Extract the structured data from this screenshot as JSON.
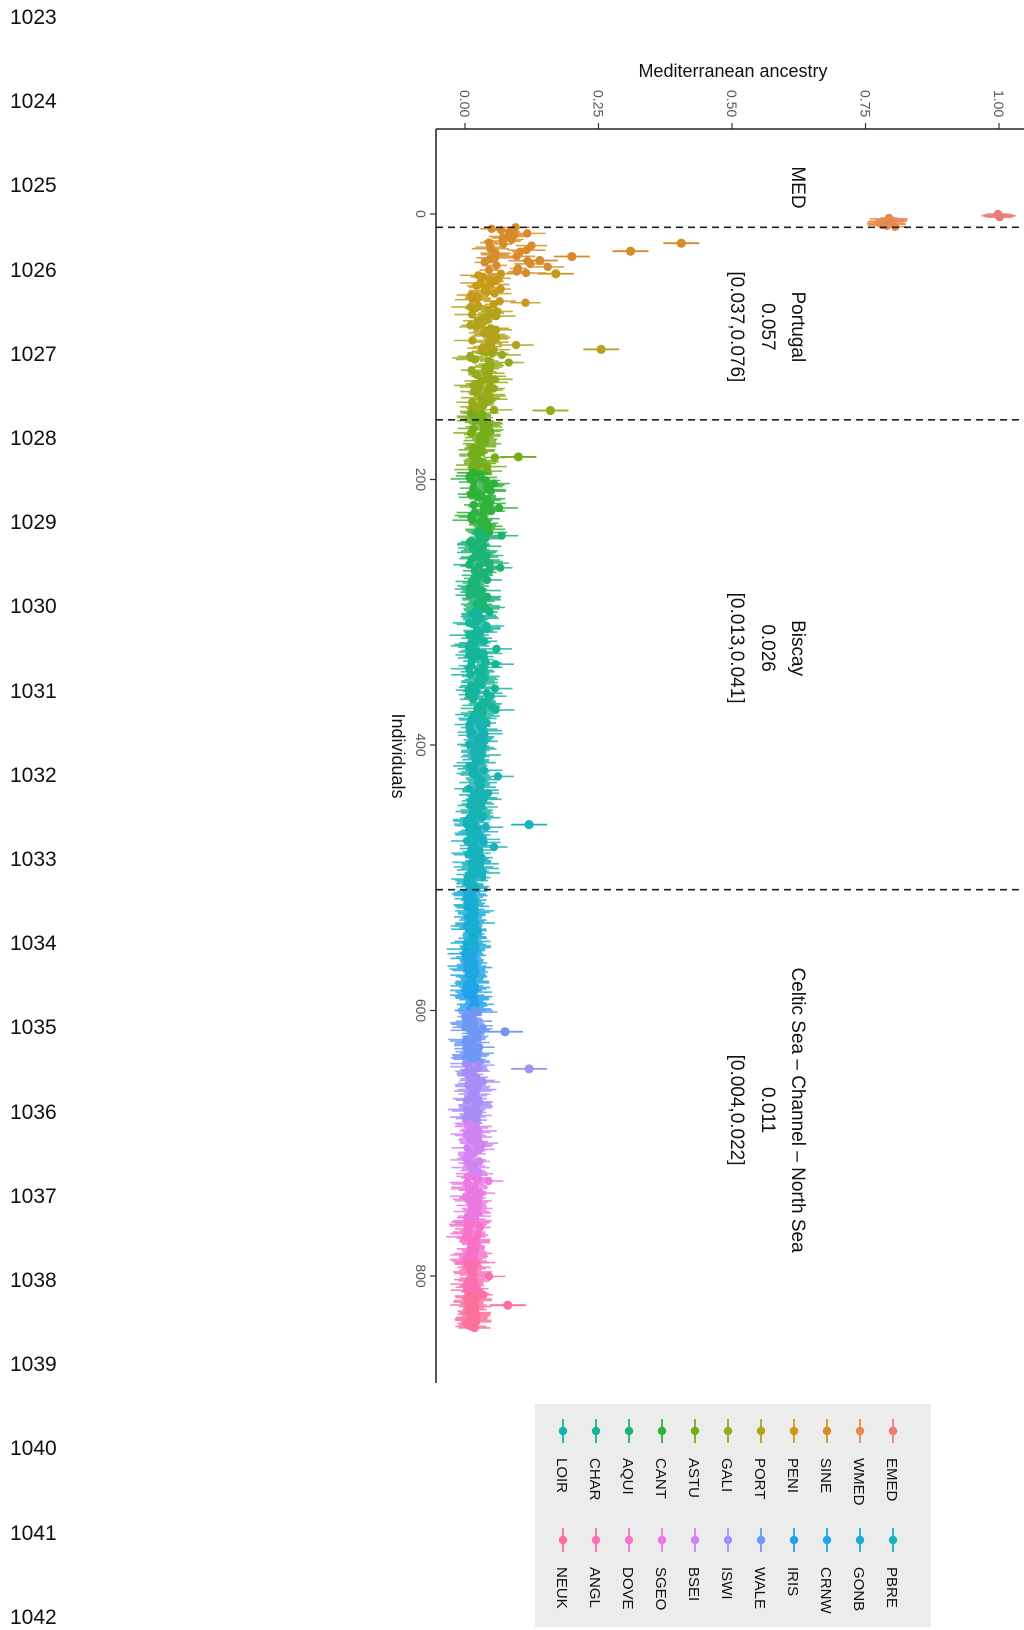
{
  "line_numbers": [
    "1023",
    "1024",
    "1025",
    "1026",
    "1027",
    "1028",
    "1029",
    "1030",
    "1031",
    "1032",
    "1033",
    "1034",
    "1035",
    "1036",
    "1037",
    "1038",
    "1039",
    "1040",
    "1041",
    "1042"
  ],
  "chart_data": {
    "type": "scatter",
    "orientation": "rotated-90",
    "xlabel": "Individuals",
    "ylabel": "Mediterranean ancestry",
    "xlim": [
      -47,
      875
    ],
    "ylim": [
      -0.03,
      1.04
    ],
    "x_ticks": [
      {
        "value": 0,
        "label": "0"
      },
      {
        "value": 200,
        "label": "200"
      },
      {
        "value": 400,
        "label": "400"
      },
      {
        "value": 600,
        "label": "600"
      },
      {
        "value": 800,
        "label": "800"
      }
    ],
    "y_ticks": [
      {
        "value": 0.0,
        "label": "0.00"
      },
      {
        "value": 0.25,
        "label": "0.25"
      },
      {
        "value": 0.5,
        "label": "0.50"
      },
      {
        "value": 0.75,
        "label": "0.75"
      },
      {
        "value": 1.0,
        "label": "1.00"
      }
    ],
    "boundaries": [
      10,
      155,
      509
    ],
    "regions": [
      {
        "name": "MED",
        "value": "",
        "interval": "",
        "x_center": -20
      },
      {
        "name": "Portugal",
        "value": "0.057",
        "interval": "[0.037,0.076]",
        "x_center": 85
      },
      {
        "name": "Biscay",
        "value": "0.026",
        "interval": "[0.013,0.041]",
        "x_center": 327
      },
      {
        "name": "Celtic Sea – Channel – North Sea",
        "value": "0.011",
        "interval": "[0.004,0.022]",
        "x_center": 675
      }
    ],
    "series": [
      {
        "name": "EMED",
        "color": "#ee7c74",
        "x_range": [
          0,
          3
        ],
        "base": 1.0,
        "spread": 0.004
      },
      {
        "name": "WMED",
        "color": "#e58b4f",
        "x_range": [
          3,
          10
        ],
        "base": 0.79,
        "spread": 0.02
      },
      {
        "name": "SINE",
        "color": "#d68c2a",
        "x_range": [
          10,
          45
        ],
        "base": 0.08,
        "spread": 0.09
      },
      {
        "name": "PENI",
        "color": "#c89a1b",
        "x_range": [
          45,
          70
        ],
        "base": 0.04,
        "spread": 0.06
      },
      {
        "name": "PORT",
        "color": "#b3a21b",
        "x_range": [
          70,
          105
        ],
        "base": 0.035,
        "spread": 0.05
      },
      {
        "name": "GALI",
        "color": "#96aa1b",
        "x_range": [
          105,
          150
        ],
        "base": 0.035,
        "spread": 0.05
      },
      {
        "name": "ASTU",
        "color": "#76ae1b",
        "x_range": [
          150,
          195
        ],
        "base": 0.028,
        "spread": 0.035
      },
      {
        "name": "CANT",
        "color": "#2eb23a",
        "x_range": [
          195,
          240
        ],
        "base": 0.026,
        "spread": 0.035
      },
      {
        "name": "AQUI",
        "color": "#1cb474",
        "x_range": [
          240,
          300
        ],
        "base": 0.025,
        "spread": 0.035
      },
      {
        "name": "CHAR",
        "color": "#16b69b",
        "x_range": [
          300,
          380
        ],
        "base": 0.024,
        "spread": 0.035
      },
      {
        "name": "LOIR",
        "color": "#18b3b0",
        "x_range": [
          380,
          455
        ],
        "base": 0.022,
        "spread": 0.03
      },
      {
        "name": "PBRE",
        "color": "#17b2be",
        "x_range": [
          455,
          510
        ],
        "base": 0.018,
        "spread": 0.03
      },
      {
        "name": "GONB",
        "color": "#19acd4",
        "x_range": [
          510,
          555
        ],
        "base": 0.01,
        "spread": 0.02
      },
      {
        "name": "CRNW",
        "color": "#1fa6e3",
        "x_range": [
          555,
          585
        ],
        "base": 0.01,
        "spread": 0.02
      },
      {
        "name": "IRIS",
        "color": "#27a0ec",
        "x_range": [
          585,
          600
        ],
        "base": 0.01,
        "spread": 0.02
      },
      {
        "name": "WALE",
        "color": "#6e98f3",
        "x_range": [
          600,
          640
        ],
        "base": 0.012,
        "spread": 0.025
      },
      {
        "name": "ISWI",
        "color": "#a68ef6",
        "x_range": [
          640,
          685
        ],
        "base": 0.014,
        "spread": 0.025
      },
      {
        "name": "BSEI",
        "color": "#d382f4",
        "x_range": [
          685,
          725
        ],
        "base": 0.015,
        "spread": 0.025
      },
      {
        "name": "SGEO",
        "color": "#ec78e2",
        "x_range": [
          725,
          760
        ],
        "base": 0.014,
        "spread": 0.025
      },
      {
        "name": "DOVE",
        "color": "#f770ca",
        "x_range": [
          760,
          790
        ],
        "base": 0.014,
        "spread": 0.025
      },
      {
        "name": "ANGL",
        "color": "#fa6fb0",
        "x_range": [
          790,
          815
        ],
        "base": 0.015,
        "spread": 0.025
      },
      {
        "name": "NEUK",
        "color": "#fb6f98",
        "x_range": [
          815,
          840
        ],
        "base": 0.012,
        "spread": 0.02
      }
    ],
    "outliers": [
      {
        "x": 22,
        "y": 0.405,
        "series": "SINE"
      },
      {
        "x": 28,
        "y": 0.31,
        "series": "SINE"
      },
      {
        "x": 32,
        "y": 0.2,
        "series": "SINE"
      },
      {
        "x": 35,
        "y": 0.14,
        "series": "SINE"
      },
      {
        "x": 45,
        "y": 0.17,
        "series": "PENI"
      },
      {
        "x": 102,
        "y": 0.255,
        "series": "PORT"
      },
      {
        "x": 148,
        "y": 0.16,
        "series": "GALI"
      },
      {
        "x": 183,
        "y": 0.1,
        "series": "ASTU"
      },
      {
        "x": 460,
        "y": 0.12,
        "series": "PBRE"
      },
      {
        "x": 616,
        "y": 0.075,
        "series": "WALE"
      },
      {
        "x": 644,
        "y": 0.12,
        "series": "ISWI"
      },
      {
        "x": 822,
        "y": 0.08,
        "series": "NEUK"
      }
    ],
    "legend": {
      "position": "bottom",
      "columns": [
        [
          "EMED",
          "WMED",
          "SINE",
          "PENI",
          "PORT",
          "GALI",
          "ASTU",
          "CANT",
          "AQUI",
          "CHAR",
          "LOIR"
        ],
        [
          "PBRE",
          "GONB",
          "CRNW",
          "IRIS",
          "WALE",
          "ISWI",
          "BSEI",
          "SGEO",
          "DOVE",
          "ANGL",
          "NEUK"
        ]
      ]
    }
  }
}
